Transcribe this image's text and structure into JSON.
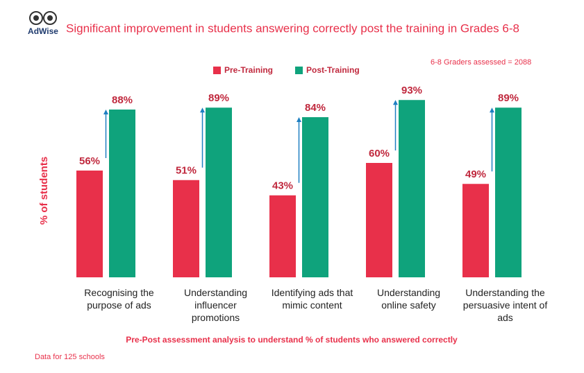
{
  "chart_data": {
    "type": "bar",
    "logo": "AdWise",
    "title": "Significant improvement in students answering correctly post the training in Grades 6-8",
    "annotation": "6-8 Graders assessed = 2088",
    "y_label": "% of students",
    "x_label": "Pre-Post assessment analysis to understand % of students who answered correctly",
    "footnote": "Data for 125 schools",
    "categories": [
      "Recognising the purpose of ads",
      "Understanding influencer promotions",
      "Identifying ads that mimic content",
      "Understanding online safety",
      "Understanding the persuasive intent of ads"
    ],
    "series": [
      {
        "name": "Pre-Training",
        "color": "#e8304a",
        "values": [
          56,
          51,
          43,
          60,
          49
        ],
        "value_labels": [
          "56%",
          "51%",
          "43%",
          "60%",
          "49%"
        ]
      },
      {
        "name": "Post-Training",
        "color": "#0fa37c",
        "values": [
          88,
          89,
          84,
          93,
          89
        ],
        "value_labels": [
          "88%",
          "89%",
          "84%",
          "93%",
          "89%"
        ]
      }
    ]
  }
}
